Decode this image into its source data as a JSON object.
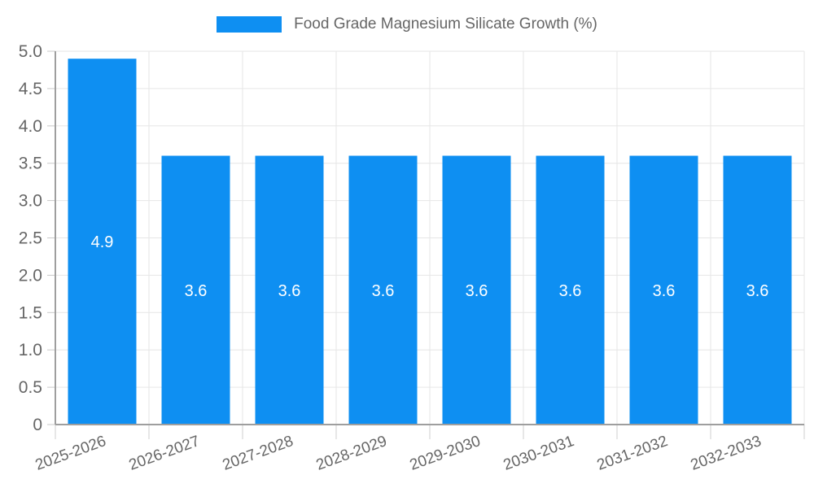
{
  "legend": {
    "label": "Food Grade Magnesium Silicate Growth (%)"
  },
  "chart_data": {
    "type": "bar",
    "title": "Food Grade Magnesium Silicate Growth (%)",
    "categories": [
      "2025-2026",
      "2026-2027",
      "2027-2028",
      "2028-2029",
      "2029-2030",
      "2030-2031",
      "2031-2032",
      "2032-2033"
    ],
    "values": [
      4.9,
      3.6,
      3.6,
      3.6,
      3.6,
      3.6,
      3.6,
      3.6
    ],
    "bar_labels": [
      "4.9",
      "3.6",
      "3.6",
      "3.6",
      "3.6",
      "3.6",
      "3.6",
      "3.6"
    ],
    "y_ticks": [
      "0",
      "0.5",
      "1.0",
      "1.5",
      "2.0",
      "2.5",
      "3.0",
      "3.5",
      "4.0",
      "4.5",
      "5.0"
    ],
    "ylim": [
      0,
      5
    ],
    "xlabel": "",
    "ylabel": "",
    "grid": true,
    "legend_position": "top",
    "x_label_rotation_deg": -20,
    "colors": {
      "bar": "#0e8ff2",
      "grid": "#e6e6e6",
      "axis": "#9e9e9e",
      "tick_text": "#666666",
      "value_text": "#ffffff"
    }
  }
}
